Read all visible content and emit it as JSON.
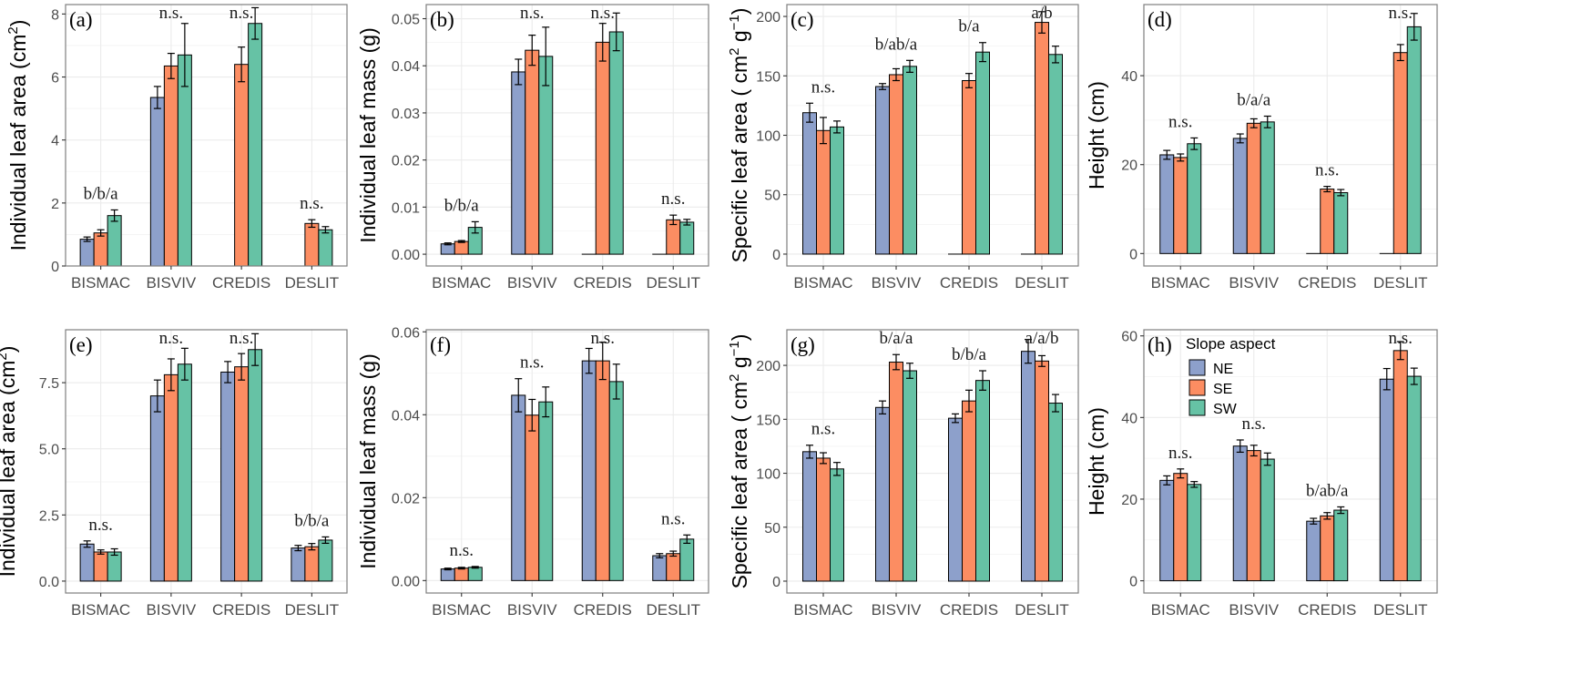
{
  "colors": {
    "NE": "#8da0cb",
    "SE": "#fc8d62",
    "SW": "#66c2a5",
    "grid": "#ebebeb",
    "frame": "#7f7f7f"
  },
  "legend": {
    "title": "Slope aspect",
    "items": [
      "NE",
      "SE",
      "SW"
    ]
  },
  "chart_data": [
    {
      "type": "bar",
      "panel": "(a)",
      "ylabel": "Individual leaf area (cm²)",
      "ylabel_parts": {
        "text": "Individual leaf area (cm",
        "sup": "2",
        "end": ")"
      },
      "ylim": [
        0,
        8.3
      ],
      "yticks": [
        0,
        2,
        4,
        6,
        8
      ],
      "ytick_labels": [
        "0",
        "2",
        "4",
        "6",
        "8"
      ],
      "categories": [
        "BISMAC",
        "BISVIV",
        "CREDIS",
        "DESLIT"
      ],
      "series": [
        {
          "name": "NE",
          "values": [
            0.85,
            5.35,
            0,
            0
          ],
          "errors": [
            0.07,
            0.35,
            0,
            0
          ]
        },
        {
          "name": "SE",
          "values": [
            1.05,
            6.35,
            6.4,
            1.35
          ],
          "errors": [
            0.1,
            0.4,
            0.55,
            0.12
          ]
        },
        {
          "name": "SW",
          "values": [
            1.6,
            6.7,
            7.7,
            1.15
          ],
          "errors": [
            0.18,
            1.0,
            0.5,
            0.1
          ]
        }
      ],
      "significance": [
        "b/b/a",
        "n.s.",
        "n.s.",
        "n.s."
      ]
    },
    {
      "type": "bar",
      "panel": "(b)",
      "ylabel": "Individual leaf mass (g)",
      "ylim": [
        -0.0025,
        0.053
      ],
      "yticks": [
        0,
        0.01,
        0.02,
        0.03,
        0.04,
        0.05
      ],
      "ytick_labels": [
        "0.00",
        "0.01",
        "0.02",
        "0.03",
        "0.04",
        "0.05"
      ],
      "categories": [
        "BISMAC",
        "BISVIV",
        "CREDIS",
        "DESLIT"
      ],
      "series": [
        {
          "name": "NE",
          "values": [
            0.0022,
            0.0387,
            0,
            0
          ],
          "errors": [
            0.0002,
            0.0027,
            0,
            0
          ]
        },
        {
          "name": "SE",
          "values": [
            0.0027,
            0.0433,
            0.045,
            0.0073
          ],
          "errors": [
            0.0002,
            0.0032,
            0.004,
            0.001
          ]
        },
        {
          "name": "SW",
          "values": [
            0.0057,
            0.042,
            0.0472,
            0.0068
          ],
          "errors": [
            0.0012,
            0.0062,
            0.004,
            0.0006
          ]
        }
      ],
      "significance": [
        "b/b/a",
        "n.s.",
        "n.s.",
        "n.s."
      ]
    },
    {
      "type": "bar",
      "panel": "(c)",
      "ylabel": "Specific leaf area (cm² g⁻¹)",
      "ylabel_parts": {
        "text": "Specific leaf area ( cm",
        "sup": "2",
        "mid": " g",
        "sup2": "−1",
        "end": ")"
      },
      "ylim": [
        -10,
        210
      ],
      "yticks": [
        0,
        50,
        100,
        150,
        200
      ],
      "ytick_labels": [
        "0",
        "50",
        "100",
        "150",
        "200"
      ],
      "categories": [
        "BISMAC",
        "BISVIV",
        "CREDIS",
        "DESLIT"
      ],
      "series": [
        {
          "name": "NE",
          "values": [
            119,
            141,
            0,
            0
          ],
          "errors": [
            8,
            2.5,
            0,
            0
          ]
        },
        {
          "name": "SE",
          "values": [
            104,
            151,
            146,
            195
          ],
          "errors": [
            11,
            5,
            6,
            9
          ]
        },
        {
          "name": "SW",
          "values": [
            107,
            158,
            170,
            168
          ],
          "errors": [
            5,
            5,
            8,
            7
          ]
        }
      ],
      "significance": [
        "n.s.",
        "b/ab/a",
        "b/a",
        "a/b"
      ]
    },
    {
      "type": "bar",
      "panel": "(d)",
      "ylabel": "Height (cm)",
      "ylim": [
        -2.8,
        56
      ],
      "yticks": [
        0,
        20,
        40
      ],
      "ytick_labels": [
        "0",
        "20",
        "40"
      ],
      "categories": [
        "BISMAC",
        "BISVIV",
        "CREDIS",
        "DESLIT"
      ],
      "series": [
        {
          "name": "NE",
          "values": [
            22.2,
            25.9,
            0,
            0
          ],
          "errors": [
            1,
            1,
            0,
            0
          ]
        },
        {
          "name": "SE",
          "values": [
            21.6,
            29.3,
            14.5,
            45.2
          ],
          "errors": [
            0.8,
            1,
            0.6,
            1.8
          ]
        },
        {
          "name": "SW",
          "values": [
            24.7,
            29.6,
            13.7,
            51
          ],
          "errors": [
            1.3,
            1.3,
            0.7,
            3
          ]
        }
      ],
      "significance": [
        "n.s.",
        "b/a/a",
        "n.s.",
        "n.s."
      ]
    },
    {
      "type": "bar",
      "panel": "(e)",
      "ylabel": "Individual leaf area (cm²)",
      "ylabel_parts": {
        "text": "Individual leaf area (cm",
        "sup": "2",
        "end": ")"
      },
      "ylim": [
        -0.45,
        9.5
      ],
      "yticks": [
        0,
        2.5,
        5,
        7.5
      ],
      "ytick_labels": [
        "0.0",
        "2.5",
        "5.0",
        "7.5"
      ],
      "categories": [
        "BISMAC",
        "BISVIV",
        "CREDIS",
        "DESLIT"
      ],
      "series": [
        {
          "name": "NE",
          "values": [
            1.4,
            7.0,
            7.9,
            1.25
          ],
          "errors": [
            0.12,
            0.6,
            0.4,
            0.1
          ]
        },
        {
          "name": "SE",
          "values": [
            1.1,
            7.8,
            8.1,
            1.3
          ],
          "errors": [
            0.08,
            0.6,
            0.5,
            0.12
          ]
        },
        {
          "name": "SW",
          "values": [
            1.1,
            8.2,
            8.75,
            1.55
          ],
          "errors": [
            0.12,
            0.6,
            0.6,
            0.12
          ]
        }
      ],
      "significance": [
        "n.s.",
        "n.s.",
        "n.s.",
        "b/b/a"
      ]
    },
    {
      "type": "bar",
      "panel": "(f)",
      "ylabel": "Individual leaf mass (g)",
      "ylim": [
        -0.003,
        0.0605
      ],
      "yticks": [
        0,
        0.02,
        0.04,
        0.06
      ],
      "ytick_labels": [
        "0.00",
        "0.02",
        "0.04",
        "0.06"
      ],
      "categories": [
        "BISMAC",
        "BISVIV",
        "CREDIS",
        "DESLIT"
      ],
      "series": [
        {
          "name": "NE",
          "values": [
            0.0028,
            0.0447,
            0.053,
            0.006
          ],
          "errors": [
            0.0002,
            0.004,
            0.003,
            0.0005
          ]
        },
        {
          "name": "SE",
          "values": [
            0.003,
            0.0399,
            0.053,
            0.0065
          ],
          "errors": [
            0.0002,
            0.0038,
            0.0045,
            0.0006
          ]
        },
        {
          "name": "SW",
          "values": [
            0.0032,
            0.0431,
            0.048,
            0.01
          ],
          "errors": [
            0.0002,
            0.0036,
            0.0042,
            0.001
          ]
        }
      ],
      "significance": [
        "n.s.",
        "n.s.",
        "n.s.",
        "n.s."
      ]
    },
    {
      "type": "bar",
      "panel": "(g)",
      "ylabel": "Specific leaf area (cm² g⁻¹)",
      "ylabel_parts": {
        "text": "Specific leaf area ( cm",
        "sup": "2",
        "mid": " g",
        "sup2": "−1",
        "end": ")"
      },
      "ylim": [
        -11,
        233
      ],
      "yticks": [
        0,
        50,
        100,
        150,
        200
      ],
      "ytick_labels": [
        "0",
        "50",
        "100",
        "150",
        "200"
      ],
      "categories": [
        "BISMAC",
        "BISVIV",
        "CREDIS",
        "DESLIT"
      ],
      "series": [
        {
          "name": "NE",
          "values": [
            120,
            161,
            151,
            213
          ],
          "errors": [
            6,
            6,
            4,
            11
          ]
        },
        {
          "name": "SE",
          "values": [
            114,
            203,
            167,
            204
          ],
          "errors": [
            5,
            7,
            10,
            5
          ]
        },
        {
          "name": "SW",
          "values": [
            104,
            195,
            186,
            165
          ],
          "errors": [
            6,
            7,
            9,
            8
          ]
        }
      ],
      "significance": [
        "n.s.",
        "b/a/a",
        "b/b/a",
        "a/a/b"
      ]
    },
    {
      "type": "bar",
      "panel": "(h)",
      "ylabel": "Height (cm)",
      "ylim": [
        -3,
        61.5
      ],
      "yticks": [
        0,
        20,
        40,
        60
      ],
      "ytick_labels": [
        "0",
        "20",
        "40",
        "60"
      ],
      "categories": [
        "BISMAC",
        "BISVIV",
        "CREDIS",
        "DESLIT"
      ],
      "series": [
        {
          "name": "NE",
          "values": [
            24.6,
            33,
            14.6,
            49.4
          ],
          "errors": [
            1.1,
            1.5,
            0.7,
            2.6
          ]
        },
        {
          "name": "SE",
          "values": [
            26.3,
            31.9,
            15.9,
            56.4
          ],
          "errors": [
            1.1,
            1.3,
            0.8,
            2.2
          ]
        },
        {
          "name": "SW",
          "values": [
            23.6,
            29.8,
            17.3,
            50.1
          ],
          "errors": [
            0.7,
            1.5,
            0.8,
            2
          ]
        }
      ],
      "significance": [
        "n.s.",
        "n.s.",
        "b/ab/a",
        "n.s."
      ]
    }
  ]
}
